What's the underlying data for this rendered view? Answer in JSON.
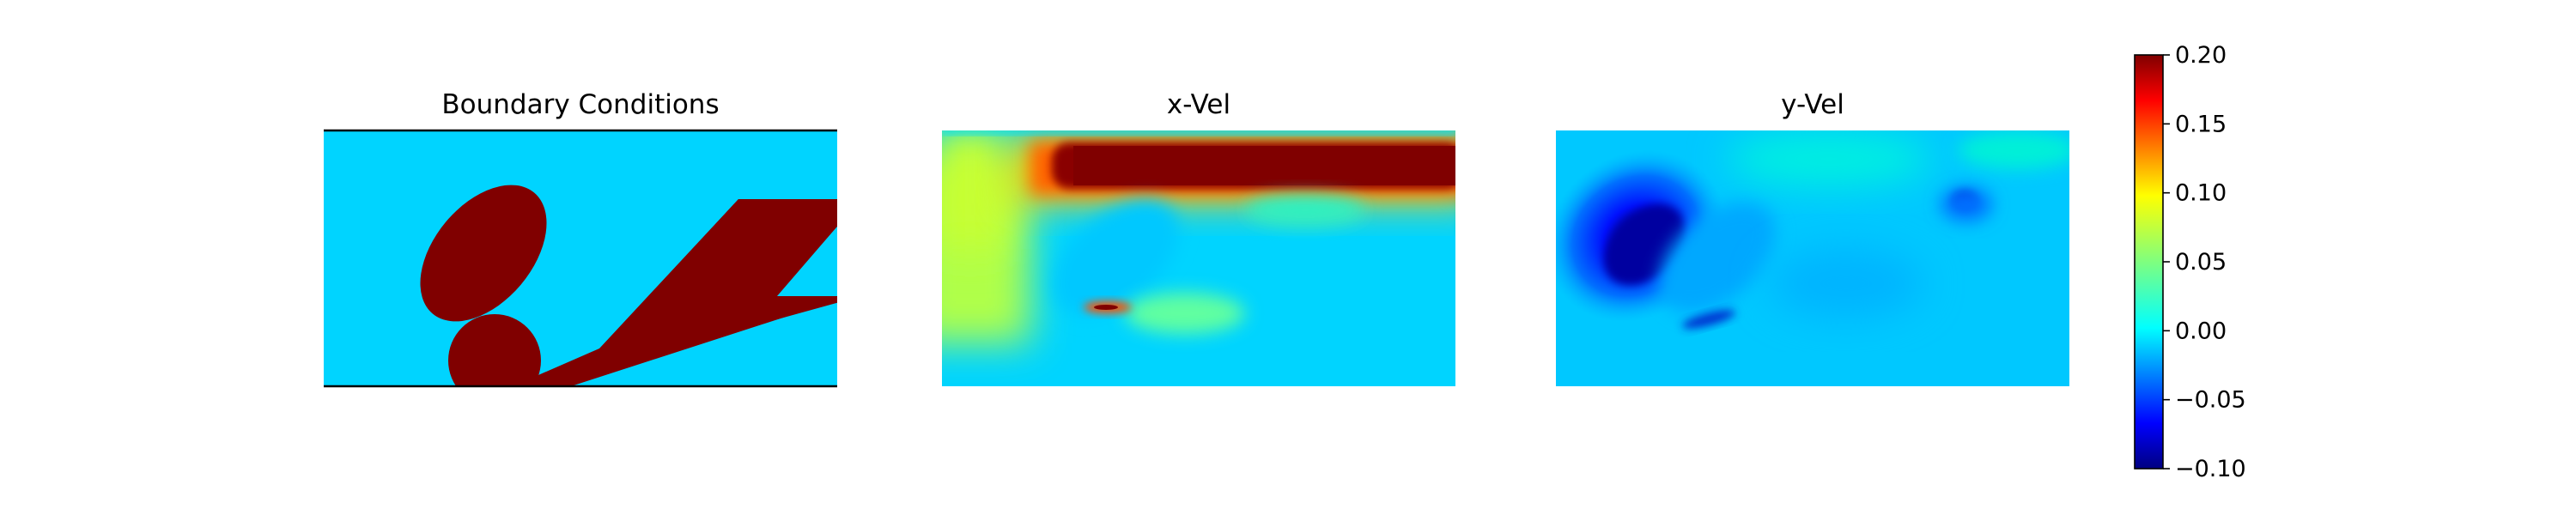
{
  "chart_data": {
    "type": "heatmap",
    "panels": [
      {
        "title": "Boundary Conditions",
        "kind": "mask"
      },
      {
        "title": "x-Vel",
        "kind": "field"
      },
      {
        "title": "y-Vel",
        "kind": "field"
      }
    ],
    "colorbar": {
      "colormap": "jet",
      "range": [
        -0.1,
        0.2
      ],
      "ticks": [
        {
          "value": 0.2,
          "label": "0.20"
        },
        {
          "value": 0.15,
          "label": "0.15"
        },
        {
          "value": 0.1,
          "label": "0.10"
        },
        {
          "value": 0.05,
          "label": "0.05"
        },
        {
          "value": 0.0,
          "label": "0.00"
        },
        {
          "value": -0.05,
          "label": "−0.05"
        },
        {
          "value": -0.1,
          "label": "−0.10"
        }
      ]
    },
    "colors": {
      "fluid": "#00d4ff",
      "obstacle": "#800000",
      "wall_line": "#000000"
    }
  }
}
